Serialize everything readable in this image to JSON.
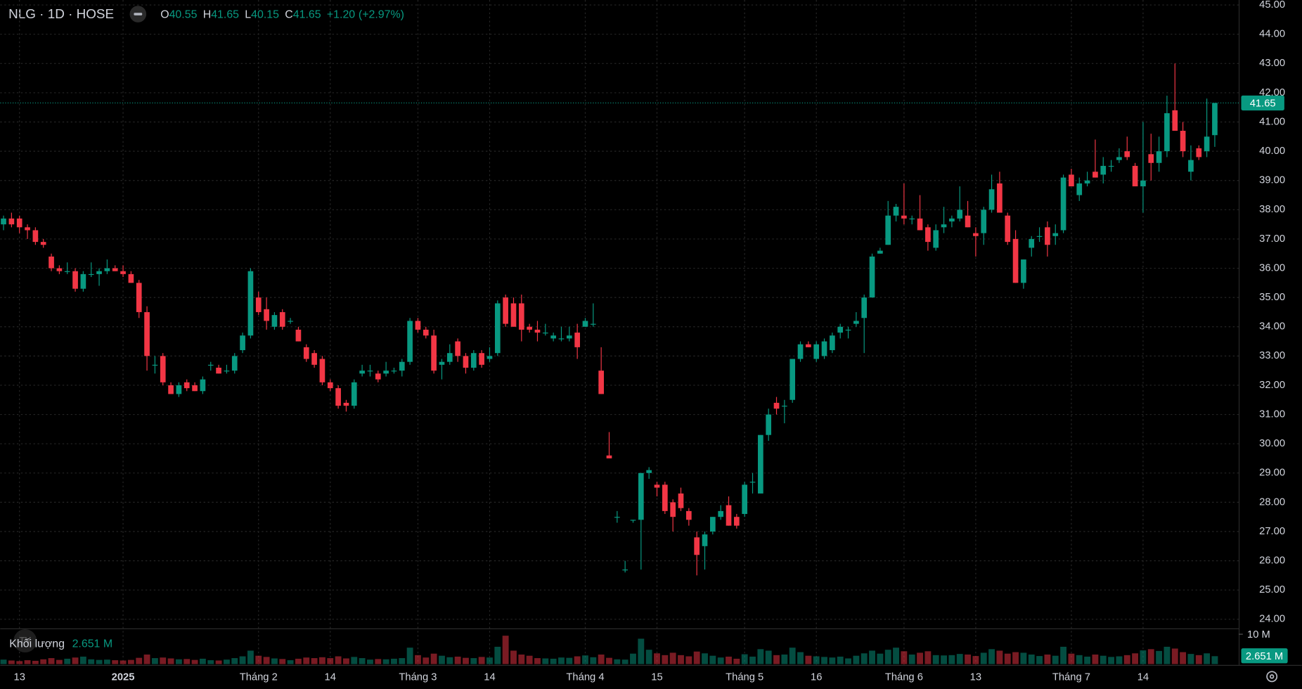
{
  "chart_data": {
    "type": "candlestick",
    "title": "NLG · 1D · HOSE",
    "ohlc_legend": [
      {
        "label": "O",
        "value": 40.55
      },
      {
        "label": "H",
        "value": 41.65
      },
      {
        "label": "L",
        "value": 40.15
      },
      {
        "label": "C",
        "value": 41.65
      }
    ],
    "change": "+1.20",
    "change_percent": "(+2.97%)",
    "up_color": "#089981",
    "down_color": "#f23645",
    "grid": true,
    "categories": [
      null,
      null,
      "13",
      null,
      null,
      null,
      null,
      null,
      null,
      null,
      null,
      null,
      null,
      null,
      null,
      "2025",
      null,
      null,
      null,
      null,
      null,
      null,
      null,
      null,
      null,
      null,
      null,
      null,
      null,
      null,
      null,
      null,
      "Tháng 2",
      null,
      null,
      null,
      null,
      null,
      null,
      null,
      null,
      "14",
      null,
      null,
      null,
      null,
      null,
      null,
      null,
      null,
      null,
      null,
      "Tháng 3",
      null,
      null,
      null,
      null,
      null,
      null,
      null,
      null,
      "14",
      null,
      null,
      null,
      null,
      null,
      null,
      null,
      null,
      null,
      null,
      null,
      "Tháng 4",
      null,
      null,
      null,
      null,
      null,
      null,
      null,
      null,
      "15",
      null,
      null,
      null,
      null,
      null,
      null,
      null,
      null,
      null,
      null,
      "Tháng 5",
      null,
      null,
      null,
      null,
      null,
      null,
      null,
      null,
      "16",
      null,
      null,
      null,
      null,
      null,
      null,
      null,
      null,
      null,
      null,
      "Tháng 6",
      null,
      null,
      null,
      null,
      null,
      null,
      null,
      null,
      "13",
      null,
      null,
      null,
      null,
      null,
      null,
      null,
      null,
      null,
      null,
      null,
      "Tháng 7",
      null,
      null,
      null,
      null,
      null,
      null,
      null,
      null,
      "14",
      null,
      null,
      null,
      null,
      null,
      null,
      null,
      null,
      null
    ],
    "open": [
      37.5,
      37.7,
      37.7,
      37.4,
      37.3,
      36.9,
      36.4,
      36.0,
      35.9,
      35.9,
      35.3,
      35.8,
      35.8,
      35.9,
      36.0,
      35.9,
      35.8,
      35.5,
      34.5,
      32.7,
      33.0,
      32.0,
      31.7,
      32.1,
      32.0,
      31.8,
      32.7,
      32.6,
      32.5,
      32.5,
      33.2,
      33.7,
      35.0,
      34.6,
      34.0,
      34.5,
      34.2,
      33.9,
      33.3,
      33.1,
      32.9,
      32.1,
      31.9,
      31.4,
      31.3,
      32.4,
      32.5,
      32.4,
      32.4,
      32.5,
      32.5,
      32.8,
      34.2,
      33.9,
      33.7,
      32.7,
      32.8,
      33.5,
      33.0,
      32.6,
      33.1,
      32.9,
      33.1,
      35.0,
      34.8,
      34.8,
      34.0,
      33.9,
      33.8,
      33.6,
      33.6,
      33.6,
      33.8,
      34.0,
      34.1,
      32.5,
      29.6,
      27.5,
      25.7,
      27.4,
      27.4,
      29.0,
      28.6,
      28.6,
      28.0,
      28.3,
      27.7,
      26.8,
      26.5,
      27.0,
      27.5,
      27.9,
      27.5,
      27.6,
      28.7,
      28.3,
      30.3,
      31.4,
      31.3,
      31.5,
      32.9,
      33.4,
      32.9,
      33.0,
      33.2,
      33.8,
      33.9,
      34.1,
      34.3,
      35.0,
      36.5,
      36.8,
      37.8,
      37.8,
      37.7,
      37.7,
      37.4,
      36.7,
      37.4,
      37.6,
      37.7,
      37.8,
      37.2,
      37.2,
      38.0,
      38.9,
      37.8,
      37.0,
      35.5,
      36.7,
      37.1,
      37.4,
      37.1,
      37.3,
      39.2,
      38.5,
      38.9,
      39.3,
      39.2,
      39.5,
      39.7,
      40.0,
      39.5,
      38.8,
      39.9,
      39.6,
      40.0,
      41.4,
      40.7,
      39.3,
      40.1,
      40.0,
      40.55
    ],
    "high": [
      37.8,
      37.9,
      37.8,
      37.5,
      37.4,
      37.0,
      36.5,
      36.1,
      36.2,
      36.0,
      35.9,
      36.2,
      36.0,
      36.3,
      36.1,
      36.1,
      35.9,
      35.6,
      34.7,
      33.0,
      33.1,
      32.1,
      32.1,
      32.2,
      32.1,
      32.3,
      32.8,
      32.7,
      32.7,
      33.1,
      33.8,
      36.0,
      35.2,
      35.0,
      34.5,
      34.6,
      34.3,
      34.0,
      33.4,
      33.2,
      33.0,
      32.2,
      32.0,
      31.5,
      32.2,
      32.7,
      32.7,
      32.5,
      32.8,
      32.6,
      32.9,
      34.3,
      34.3,
      34.0,
      33.9,
      32.9,
      33.4,
      33.6,
      33.1,
      33.2,
      33.2,
      33.3,
      34.9,
      35.1,
      35.0,
      35.1,
      34.1,
      34.2,
      34.1,
      33.8,
      34.0,
      34.0,
      34.1,
      34.3,
      34.8,
      33.3,
      30.4,
      27.7,
      26.0,
      27.4,
      29.0,
      29.2,
      28.7,
      28.7,
      28.1,
      28.5,
      27.8,
      27.0,
      27.0,
      27.5,
      27.9,
      28.2,
      27.6,
      28.7,
      29.0,
      30.3,
      31.2,
      31.6,
      31.5,
      32.9,
      33.5,
      33.5,
      33.5,
      33.6,
      33.8,
      34.1,
      34.0,
      34.5,
      35.1,
      36.5,
      36.7,
      38.3,
      38.2,
      38.9,
      37.8,
      38.5,
      37.5,
      37.5,
      38.1,
      37.8,
      38.8,
      38.3,
      37.4,
      38.1,
      39.2,
      39.3,
      37.9,
      37.3,
      36.3,
      37.1,
      37.4,
      37.6,
      37.5,
      39.2,
      39.4,
      39.1,
      39.3,
      40.4,
      39.8,
      39.7,
      40.1,
      40.5,
      39.6,
      41.0,
      40.6,
      40.5,
      41.9,
      43.0,
      41.0,
      40.2,
      40.2,
      41.8,
      41.65
    ],
    "low": [
      37.3,
      37.4,
      37.2,
      37.0,
      36.8,
      36.7,
      35.9,
      35.8,
      35.8,
      35.2,
      35.2,
      35.7,
      35.4,
      35.8,
      35.9,
      35.7,
      35.5,
      34.3,
      32.5,
      32.4,
      32.0,
      31.7,
      31.6,
      31.8,
      31.8,
      31.7,
      32.5,
      32.4,
      32.4,
      32.4,
      33.1,
      33.6,
      34.4,
      33.9,
      33.9,
      33.9,
      34.1,
      33.5,
      32.8,
      32.6,
      32.0,
      31.8,
      31.2,
      31.1,
      31.2,
      32.3,
      32.3,
      32.1,
      32.3,
      32.4,
      32.3,
      32.7,
      33.8,
      33.6,
      32.4,
      32.2,
      32.7,
      32.8,
      32.4,
      32.5,
      32.6,
      32.8,
      33.0,
      34.0,
      34.0,
      33.5,
      33.8,
      33.5,
      33.7,
      33.5,
      33.5,
      33.5,
      32.9,
      34.0,
      34.0,
      31.7,
      29.5,
      27.3,
      25.6,
      27.3,
      25.7,
      28.8,
      28.2,
      27.6,
      27.0,
      27.7,
      27.2,
      25.5,
      25.7,
      26.9,
      27.4,
      27.2,
      27.1,
      27.5,
      28.3,
      28.3,
      30.1,
      31.0,
      30.7,
      31.4,
      32.8,
      33.3,
      32.8,
      32.9,
      33.1,
      33.6,
      33.6,
      34.0,
      33.1,
      35.0,
      36.5,
      36.8,
      37.6,
      37.5,
      37.5,
      37.3,
      36.6,
      36.6,
      37.2,
      37.4,
      37.6,
      37.4,
      36.4,
      36.8,
      37.9,
      37.9,
      36.8,
      35.5,
      35.3,
      36.4,
      36.9,
      36.4,
      36.8,
      37.2,
      38.8,
      38.3,
      38.8,
      39.1,
      38.9,
      39.3,
      39.6,
      39.7,
      38.8,
      37.9,
      39.0,
      39.3,
      39.8,
      40.7,
      39.8,
      39.0,
      39.7,
      39.8,
      40.15
    ],
    "close": [
      37.7,
      37.5,
      37.4,
      37.3,
      36.9,
      36.8,
      36.0,
      35.9,
      35.9,
      35.3,
      35.8,
      35.8,
      35.9,
      36.0,
      35.9,
      35.8,
      35.5,
      34.5,
      33.0,
      32.7,
      32.1,
      31.7,
      32.0,
      31.9,
      31.8,
      32.2,
      32.7,
      32.4,
      32.5,
      33.0,
      33.7,
      35.9,
      34.5,
      34.2,
      34.4,
      34.0,
      34.2,
      33.5,
      32.9,
      32.7,
      32.1,
      31.9,
      31.3,
      31.3,
      32.1,
      32.5,
      32.5,
      32.2,
      32.5,
      32.5,
      32.8,
      34.2,
      33.9,
      33.7,
      32.5,
      32.8,
      33.1,
      33.0,
      32.6,
      33.1,
      32.7,
      33.0,
      34.8,
      34.1,
      34.0,
      33.9,
      33.9,
      33.8,
      33.8,
      33.7,
      33.6,
      33.7,
      33.3,
      34.2,
      34.1,
      31.7,
      29.5,
      27.5,
      25.7,
      27.4,
      29.0,
      29.1,
      28.5,
      27.7,
      27.5,
      27.8,
      27.4,
      26.2,
      26.9,
      27.5,
      27.7,
      27.2,
      27.2,
      28.6,
      28.7,
      30.3,
      31.0,
      31.2,
      31.3,
      32.9,
      33.4,
      33.3,
      33.4,
      33.5,
      33.7,
      34.0,
      33.9,
      34.2,
      35.0,
      36.4,
      36.6,
      37.8,
      38.1,
      37.7,
      37.7,
      37.3,
      36.9,
      37.3,
      37.5,
      37.7,
      38.0,
      37.4,
      37.1,
      38.0,
      38.7,
      37.9,
      36.9,
      35.5,
      36.3,
      37.0,
      37.1,
      36.8,
      37.2,
      39.1,
      38.8,
      38.9,
      39.0,
      39.1,
      39.5,
      39.5,
      39.8,
      39.8,
      38.8,
      39.0,
      39.6,
      40.0,
      41.3,
      40.7,
      40.0,
      39.7,
      39.8,
      40.5,
      41.65
    ],
    "volume": [
      1.5,
      1.2,
      1.0,
      1.3,
      1.1,
      1.6,
      2.0,
      1.4,
      1.8,
      2.2,
      2.5,
      1.6,
      1.4,
      1.5,
      1.3,
      1.2,
      1.4,
      2.1,
      3.2,
      2.0,
      2.2,
      1.9,
      1.6,
      1.7,
      1.4,
      1.8,
      1.3,
      1.2,
      1.5,
      2.0,
      2.6,
      4.5,
      2.8,
      2.4,
      1.9,
      1.7,
      1.3,
      1.8,
      2.2,
      2.0,
      2.3,
      2.0,
      2.6,
      1.9,
      2.4,
      2.0,
      1.5,
      1.7,
      1.6,
      1.8,
      2.0,
      5.5,
      3.0,
      2.2,
      3.5,
      2.8,
      2.3,
      2.5,
      2.1,
      2.0,
      2.4,
      2.2,
      5.8,
      9.5,
      4.5,
      3.2,
      2.8,
      2.0,
      1.9,
      1.8,
      2.2,
      2.1,
      2.6,
      2.9,
      2.3,
      3.2,
      2.1,
      1.6,
      1.5,
      3.5,
      8.5,
      4.8,
      3.6,
      3.0,
      3.8,
      3.0,
      2.6,
      4.2,
      3.6,
      2.8,
      2.2,
      2.5,
      1.8,
      3.3,
      2.5,
      5.0,
      4.5,
      3.0,
      3.2,
      5.5,
      4.0,
      2.8,
      2.6,
      2.4,
      2.2,
      2.5,
      1.9,
      2.8,
      3.6,
      4.5,
      3.5,
      4.8,
      5.5,
      4.3,
      3.2,
      3.8,
      4.3,
      3.0,
      2.9,
      3.0,
      3.4,
      3.2,
      2.7,
      3.8,
      5.0,
      4.5,
      3.5,
      4.0,
      3.8,
      3.2,
      2.7,
      3.2,
      2.8,
      5.8,
      3.5,
      3.0,
      2.5,
      3.2,
      2.8,
      2.4,
      2.6,
      3.0,
      3.6,
      4.6,
      5.0,
      4.4,
      5.8,
      5.2,
      4.0,
      3.4,
      3.0,
      3.6,
      2.651
    ],
    "volume_title": "Khối lượng",
    "volume_last_label": "2.651 M",
    "ylim": [
      24,
      45
    ],
    "yticks": [
      {
        "value": 45,
        "label": "45.00"
      },
      {
        "value": 44,
        "label": "44.00"
      },
      {
        "value": 43,
        "label": "43.00"
      },
      {
        "value": 42,
        "label": "42.00"
      },
      {
        "value": 41,
        "label": "41.00"
      },
      {
        "value": 40,
        "label": "40.00"
      },
      {
        "value": 39,
        "label": "39.00"
      },
      {
        "value": 38,
        "label": "38.00"
      },
      {
        "value": 37,
        "label": "37.00"
      },
      {
        "value": 36,
        "label": "36.00"
      },
      {
        "value": 35,
        "label": "35.00"
      },
      {
        "value": 34,
        "label": "34.00"
      },
      {
        "value": 33,
        "label": "33.00"
      },
      {
        "value": 32,
        "label": "32.00"
      },
      {
        "value": 31,
        "label": "31.00"
      },
      {
        "value": 30,
        "label": "30.00"
      },
      {
        "value": 29,
        "label": "29.00"
      },
      {
        "value": 28,
        "label": "28.00"
      },
      {
        "value": 27,
        "label": "27.00"
      },
      {
        "value": 26,
        "label": "26.00"
      },
      {
        "value": 25,
        "label": "25.00"
      },
      {
        "value": 24,
        "label": "24.00"
      }
    ],
    "vlim": [
      0,
      10
    ],
    "vticks": [
      {
        "value": 10,
        "label": "10 M"
      }
    ]
  }
}
